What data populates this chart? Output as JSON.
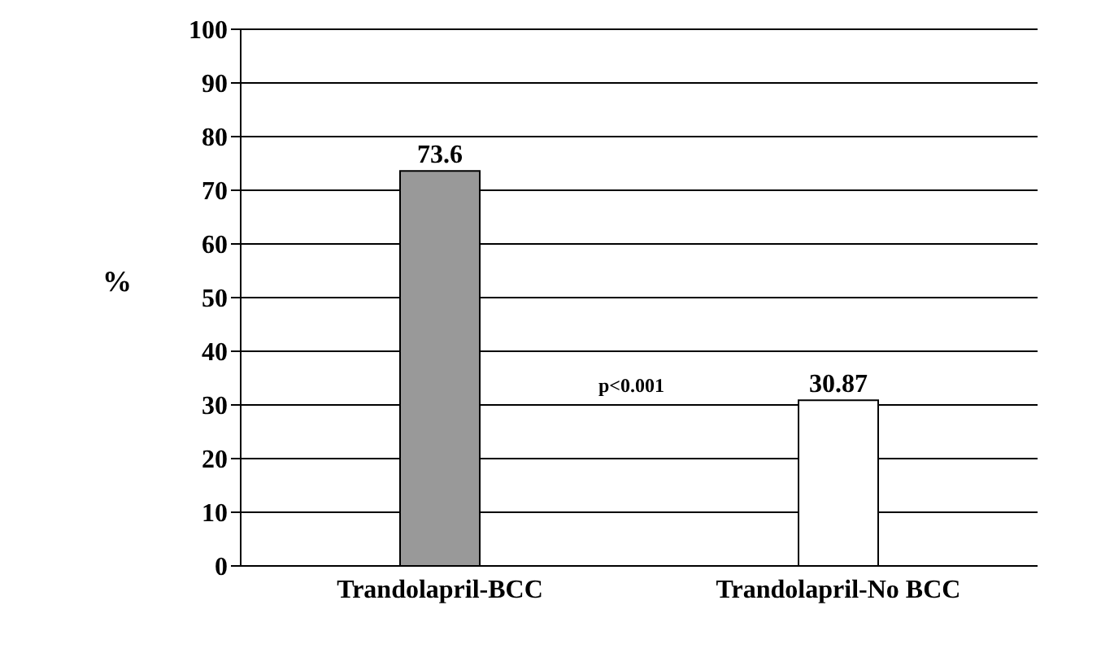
{
  "chart_data": {
    "type": "bar",
    "categories": [
      "Trandolapril-BCC",
      "Trandolapril-No BCC"
    ],
    "values": [
      73.6,
      30.87
    ],
    "colors": [
      "#999999",
      "#ffffff"
    ],
    "ylabel": "%",
    "ylim": [
      0,
      100
    ],
    "yticks": [
      0,
      10,
      20,
      30,
      40,
      50,
      60,
      70,
      80,
      90,
      100
    ],
    "grid": "y",
    "data_labels": true,
    "annotations": [
      "p<0.001"
    ]
  }
}
